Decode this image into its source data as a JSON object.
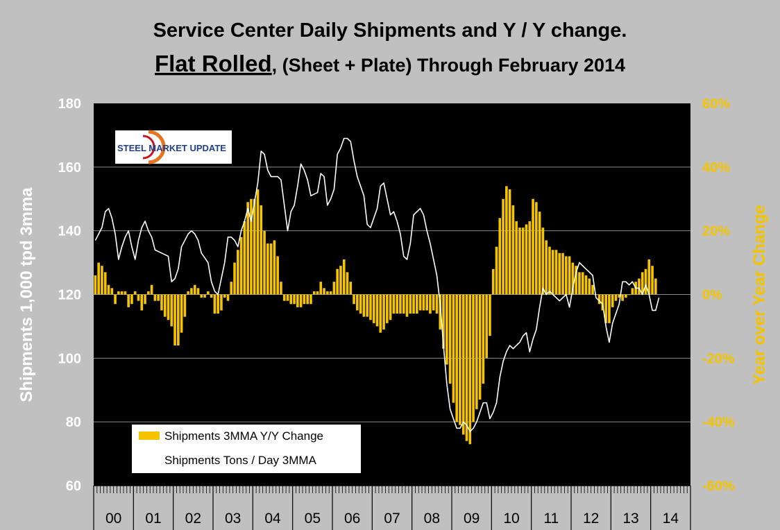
{
  "title_line1": "Service Center Daily Shipments and Y / Y change.",
  "title_line2_main": "Flat Rolled",
  "title_line2_rest": ", (Sheet + Plate) Through February 2014",
  "logo_text": "STEEL MARKET UPDATE",
  "colors": {
    "bars": "#f5c400",
    "line": "#ffffff",
    "plot_bg": "#000000",
    "page_bg": "#c0c0c0"
  },
  "chart_data": {
    "type": "bar+line",
    "title": "Service Center Daily Shipments and Y / Y change. Flat Rolled, (Sheet + Plate) Through February 2014",
    "categories": [
      "00",
      "01",
      "02",
      "03",
      "04",
      "05",
      "06",
      "07",
      "08",
      "09",
      "10",
      "11",
      "12",
      "13",
      "14"
    ],
    "ylabel_left": "Shipments 1,000 tpd 3mma",
    "ylabel_right": "Year over Year Change",
    "ylim_left": [
      60,
      180
    ],
    "ylim_right": [
      -0.6,
      0.6
    ],
    "yticks_left": [
      "180",
      "160",
      "140",
      "120",
      "100",
      "80",
      "60"
    ],
    "yticks_right": [
      "60%",
      "40%",
      "20%",
      "0%",
      "-20%",
      "-40%",
      "-60%"
    ],
    "legend": [
      "Shipments 3MMA Y/Y Change",
      "Shipments Tons / Day 3MMA"
    ],
    "legend_position": "bottom-left",
    "yoy_anchors": [
      [
        0,
        0.06
      ],
      [
        1,
        0.1
      ],
      [
        2,
        0.09
      ],
      [
        3,
        0.07
      ],
      [
        4,
        0.03
      ],
      [
        5,
        0.02
      ],
      [
        6,
        -0.03
      ],
      [
        7,
        0.01
      ],
      [
        8,
        0.01
      ],
      [
        9,
        0.01
      ],
      [
        10,
        -0.04
      ],
      [
        11,
        -0.03
      ],
      [
        12,
        0.01
      ],
      [
        13,
        -0.02
      ],
      [
        14,
        -0.05
      ],
      [
        15,
        -0.03
      ],
      [
        16,
        0.01
      ],
      [
        17,
        0.03
      ],
      [
        18,
        -0.02
      ],
      [
        19,
        -0.02
      ],
      [
        20,
        -0.05
      ],
      [
        21,
        -0.07
      ],
      [
        22,
        -0.08
      ],
      [
        23,
        -0.1
      ],
      [
        24,
        -0.16
      ],
      [
        25,
        -0.16
      ],
      [
        26,
        -0.12
      ],
      [
        27,
        -0.07
      ],
      [
        28,
        0.01
      ],
      [
        29,
        0.02
      ],
      [
        30,
        0.03
      ],
      [
        31,
        0.02
      ],
      [
        32,
        -0.01
      ],
      [
        33,
        -0.01
      ],
      [
        34,
        0.01
      ],
      [
        35,
        -0.01
      ],
      [
        36,
        -0.06
      ],
      [
        37,
        -0.06
      ],
      [
        38,
        -0.05
      ],
      [
        39,
        -0.01
      ],
      [
        40,
        -0.02
      ],
      [
        41,
        0.04
      ],
      [
        42,
        0.1
      ],
      [
        43,
        0.14
      ],
      [
        44,
        0.18
      ],
      [
        45,
        0.23
      ],
      [
        46,
        0.29
      ],
      [
        47,
        0.3
      ],
      [
        48,
        0.3
      ],
      [
        49,
        0.33
      ],
      [
        50,
        0.28
      ],
      [
        51,
        0.2
      ],
      [
        52,
        0.16
      ],
      [
        53,
        0.16
      ],
      [
        54,
        0.17
      ],
      [
        55,
        0.12
      ],
      [
        56,
        0.04
      ],
      [
        57,
        -0.02
      ],
      [
        58,
        -0.02
      ],
      [
        59,
        -0.03
      ],
      [
        60,
        -0.03
      ],
      [
        61,
        -0.04
      ],
      [
        62,
        -0.04
      ],
      [
        63,
        -0.03
      ],
      [
        64,
        -0.03
      ],
      [
        65,
        -0.03
      ],
      [
        66,
        0.01
      ],
      [
        67,
        0.01
      ],
      [
        68,
        0.04
      ],
      [
        69,
        0.02
      ],
      [
        70,
        0.01
      ],
      [
        71,
        0.01
      ],
      [
        72,
        0.04
      ],
      [
        73,
        0.08
      ],
      [
        74,
        0.09
      ],
      [
        75,
        0.11
      ],
      [
        76,
        0.07
      ],
      [
        77,
        0.04
      ],
      [
        78,
        -0.03
      ],
      [
        79,
        -0.05
      ],
      [
        80,
        -0.06
      ],
      [
        81,
        -0.07
      ],
      [
        82,
        -0.07
      ],
      [
        83,
        -0.08
      ],
      [
        84,
        -0.09
      ],
      [
        85,
        -0.1
      ],
      [
        86,
        -0.12
      ],
      [
        87,
        -0.11
      ],
      [
        88,
        -0.09
      ],
      [
        89,
        -0.08
      ],
      [
        90,
        -0.06
      ],
      [
        91,
        -0.06
      ],
      [
        92,
        -0.06
      ],
      [
        93,
        -0.06
      ],
      [
        94,
        -0.07
      ],
      [
        95,
        -0.06
      ],
      [
        96,
        -0.06
      ],
      [
        97,
        -0.06
      ],
      [
        98,
        -0.05
      ],
      [
        99,
        -0.05
      ],
      [
        100,
        -0.05
      ],
      [
        101,
        -0.06
      ],
      [
        102,
        -0.05
      ],
      [
        103,
        -0.06
      ],
      [
        104,
        -0.11
      ],
      [
        105,
        -0.17
      ],
      [
        106,
        -0.22
      ],
      [
        107,
        -0.28
      ],
      [
        108,
        -0.34
      ],
      [
        109,
        -0.4
      ],
      [
        110,
        -0.41
      ],
      [
        111,
        -0.44
      ],
      [
        112,
        -0.46
      ],
      [
        113,
        -0.47
      ],
      [
        114,
        -0.4
      ],
      [
        115,
        -0.36
      ],
      [
        116,
        -0.33
      ],
      [
        117,
        -0.28
      ],
      [
        118,
        -0.2
      ],
      [
        119,
        -0.13
      ],
      [
        120,
        0.08
      ],
      [
        121,
        0.15
      ],
      [
        122,
        0.24
      ],
      [
        123,
        0.3
      ],
      [
        124,
        0.34
      ],
      [
        125,
        0.33
      ],
      [
        126,
        0.28
      ],
      [
        127,
        0.23
      ],
      [
        128,
        0.21
      ],
      [
        129,
        0.21
      ],
      [
        130,
        0.22
      ],
      [
        131,
        0.23
      ],
      [
        132,
        0.3
      ],
      [
        133,
        0.29
      ],
      [
        134,
        0.26
      ],
      [
        135,
        0.21
      ],
      [
        136,
        0.17
      ],
      [
        137,
        0.15
      ],
      [
        138,
        0.14
      ],
      [
        139,
        0.14
      ],
      [
        140,
        0.13
      ],
      [
        141,
        0.13
      ],
      [
        142,
        0.12
      ],
      [
        143,
        0.12
      ],
      [
        144,
        0.1
      ],
      [
        145,
        0.09
      ],
      [
        146,
        0.07
      ],
      [
        147,
        0.07
      ],
      [
        148,
        0.06
      ],
      [
        149,
        0.05
      ],
      [
        150,
        0.03
      ],
      [
        151,
        0.0
      ],
      [
        152,
        -0.03
      ],
      [
        153,
        -0.05
      ],
      [
        154,
        -0.09
      ],
      [
        155,
        -0.09
      ],
      [
        156,
        -0.04
      ],
      [
        157,
        -0.02
      ],
      [
        158,
        -0.01
      ],
      [
        159,
        -0.02
      ],
      [
        160,
        -0.01
      ],
      [
        161,
        0.0
      ],
      [
        162,
        0.02
      ],
      [
        163,
        0.04
      ],
      [
        164,
        0.05
      ],
      [
        165,
        0.07
      ],
      [
        166,
        0.08
      ],
      [
        167,
        0.11
      ],
      [
        168,
        0.09
      ],
      [
        169,
        0.05
      ]
    ],
    "shipments_anchors": [
      [
        0,
        137
      ],
      [
        2,
        141
      ],
      [
        3,
        146
      ],
      [
        4,
        147
      ],
      [
        5,
        144
      ],
      [
        6,
        139
      ],
      [
        7,
        131
      ],
      [
        8,
        135
      ],
      [
        9,
        138
      ],
      [
        10,
        140
      ],
      [
        11,
        135
      ],
      [
        12,
        131
      ],
      [
        13,
        137
      ],
      [
        14,
        141
      ],
      [
        15,
        143
      ],
      [
        16,
        140
      ],
      [
        17,
        138
      ],
      [
        18,
        134
      ],
      [
        20,
        133
      ],
      [
        22,
        132
      ],
      [
        23,
        124
      ],
      [
        24,
        125
      ],
      [
        25,
        128
      ],
      [
        26,
        135
      ],
      [
        27,
        137
      ],
      [
        28,
        139
      ],
      [
        29,
        140
      ],
      [
        30,
        139
      ],
      [
        31,
        137
      ],
      [
        32,
        133
      ],
      [
        34,
        130
      ],
      [
        35,
        124
      ],
      [
        36,
        121
      ],
      [
        37,
        120
      ],
      [
        39,
        130
      ],
      [
        40,
        138
      ],
      [
        41,
        138
      ],
      [
        42,
        137
      ],
      [
        43,
        135
      ],
      [
        44,
        140
      ],
      [
        45,
        143
      ],
      [
        46,
        147
      ],
      [
        47,
        143
      ],
      [
        48,
        149
      ],
      [
        49,
        155
      ],
      [
        50,
        165
      ],
      [
        51,
        164
      ],
      [
        52,
        159
      ],
      [
        53,
        157
      ],
      [
        55,
        157
      ],
      [
        56,
        156
      ],
      [
        57,
        148
      ],
      [
        58,
        140
      ],
      [
        59,
        146
      ],
      [
        60,
        148
      ],
      [
        61,
        154
      ],
      [
        62,
        161
      ],
      [
        63,
        159
      ],
      [
        64,
        156
      ],
      [
        65,
        151
      ],
      [
        67,
        152
      ],
      [
        68,
        158
      ],
      [
        69,
        157
      ],
      [
        70,
        148
      ],
      [
        71,
        150
      ],
      [
        72,
        153
      ],
      [
        73,
        164
      ],
      [
        74,
        166
      ],
      [
        75,
        169
      ],
      [
        76,
        169
      ],
      [
        77,
        168
      ],
      [
        78,
        162
      ],
      [
        79,
        157
      ],
      [
        80,
        154
      ],
      [
        81,
        151
      ],
      [
        82,
        142
      ],
      [
        83,
        141
      ],
      [
        84,
        144
      ],
      [
        85,
        147
      ],
      [
        86,
        154
      ],
      [
        87,
        155
      ],
      [
        88,
        150
      ],
      [
        89,
        145
      ],
      [
        90,
        146
      ],
      [
        91,
        143
      ],
      [
        92,
        139
      ],
      [
        93,
        132
      ],
      [
        94,
        131
      ],
      [
        95,
        136
      ],
      [
        96,
        145
      ],
      [
        97,
        146
      ],
      [
        98,
        147
      ],
      [
        99,
        145
      ],
      [
        100,
        140
      ],
      [
        101,
        136
      ],
      [
        102,
        131
      ],
      [
        103,
        126
      ],
      [
        104,
        117
      ],
      [
        105,
        104
      ],
      [
        106,
        92
      ],
      [
        107,
        84
      ],
      [
        108,
        81
      ],
      [
        109,
        78
      ],
      [
        110,
        78
      ],
      [
        111,
        80
      ],
      [
        112,
        79
      ],
      [
        113,
        77
      ],
      [
        114,
        78
      ],
      [
        115,
        80
      ],
      [
        116,
        83
      ],
      [
        117,
        86
      ],
      [
        118,
        86
      ],
      [
        119,
        81
      ],
      [
        120,
        83
      ],
      [
        121,
        86
      ],
      [
        122,
        94
      ],
      [
        123,
        99
      ],
      [
        124,
        102
      ],
      [
        125,
        104
      ],
      [
        126,
        103
      ],
      [
        127,
        104
      ],
      [
        128,
        105
      ],
      [
        129,
        107
      ],
      [
        130,
        108
      ],
      [
        131,
        102
      ],
      [
        132,
        106
      ],
      [
        133,
        109
      ],
      [
        134,
        116
      ],
      [
        135,
        122
      ],
      [
        136,
        120
      ],
      [
        137,
        121
      ],
      [
        138,
        120
      ],
      [
        139,
        119
      ],
      [
        140,
        118
      ],
      [
        141,
        119
      ],
      [
        142,
        120
      ],
      [
        143,
        116
      ],
      [
        144,
        122
      ],
      [
        145,
        127
      ],
      [
        146,
        130
      ],
      [
        147,
        129
      ],
      [
        148,
        128
      ],
      [
        149,
        127
      ],
      [
        150,
        126
      ],
      [
        151,
        119
      ],
      [
        152,
        118
      ],
      [
        153,
        117
      ],
      [
        154,
        110
      ],
      [
        155,
        105
      ],
      [
        156,
        111
      ],
      [
        157,
        114
      ],
      [
        158,
        117
      ],
      [
        159,
        124
      ],
      [
        160,
        124
      ],
      [
        161,
        123
      ],
      [
        162,
        124
      ],
      [
        163,
        122
      ],
      [
        164,
        122
      ],
      [
        165,
        120
      ],
      [
        166,
        123
      ],
      [
        167,
        120
      ],
      [
        168,
        115
      ],
      [
        169,
        115
      ],
      [
        170,
        119
      ]
    ]
  }
}
